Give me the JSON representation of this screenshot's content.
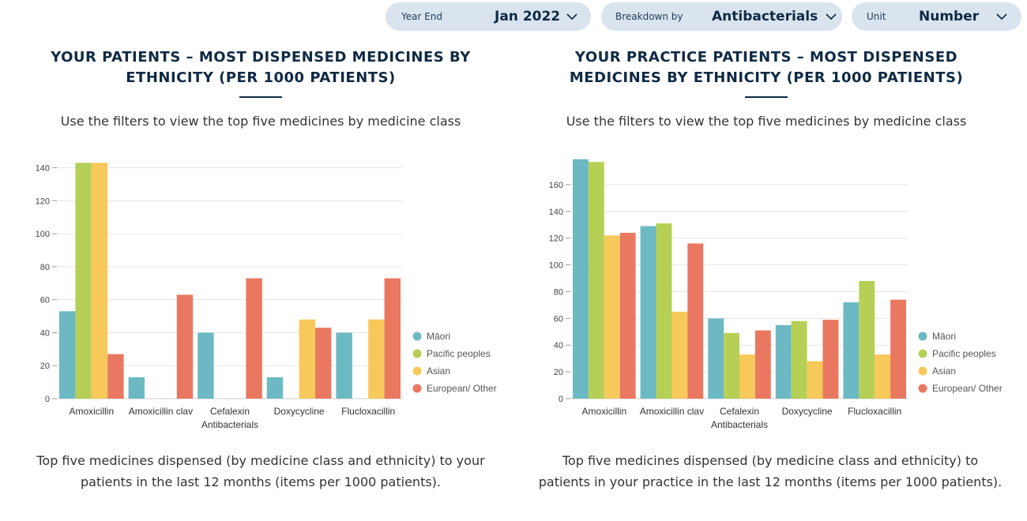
{
  "filters": [
    {
      "label": "Year End",
      "value": "Jan 2022"
    },
    {
      "label": "Breakdown by",
      "value": "Antibacterials"
    },
    {
      "label": "Unit",
      "value": "Number"
    }
  ],
  "colors": {
    "Māori": "#6cb9c4",
    "Pacific peoples": "#b5d055",
    "Asian": "#f7c95a",
    "European/ Other": "#ea7860"
  },
  "panels": [
    {
      "title": "YOUR PATIENTS – MOST DISPENSED MEDICINES BY ETHNICITY (PER 1000 PATIENTS)",
      "subtitle": "Use the filters to view the top five medicines by medicine class",
      "caption": "Top five medicines dispensed (by medicine class and ethnicity) to your patients in the last 12 months (items per 1000 patients)."
    },
    {
      "title": "YOUR PRACTICE PATIENTS – MOST DISPENSED MEDICINES BY ETHNICITY (PER 1000 PATIENTS)",
      "subtitle": "Use the filters to view the top five medicines by medicine class",
      "caption": "Top five medicines dispensed (by medicine class and ethnicity) to patients in your practice in the last 12 months (items per 1000 patients)."
    }
  ],
  "chart_data": [
    {
      "type": "bar",
      "xlabel": "Antibacterials",
      "ylabel": "",
      "categories": [
        "Amoxicillin",
        "Amoxicillin clav",
        "Cefalexin",
        "Doxycycline",
        "Flucloxacillin"
      ],
      "series": [
        {
          "name": "Māori",
          "values": [
            53,
            13,
            40,
            13,
            40
          ]
        },
        {
          "name": "Pacific peoples",
          "values": [
            143,
            0,
            0,
            0,
            0
          ]
        },
        {
          "name": "Asian",
          "values": [
            143,
            0,
            0,
            48,
            48
          ]
        },
        {
          "name": "European/ Other",
          "values": [
            27,
            63,
            73,
            43,
            73
          ]
        }
      ],
      "ylim": [
        0,
        146
      ],
      "yticks": [
        0,
        20,
        40,
        60,
        80,
        100,
        120,
        140
      ],
      "legend": "right",
      "grid": true
    },
    {
      "type": "bar",
      "xlabel": "Antibacterials",
      "ylabel": "",
      "categories": [
        "Amoxicillin",
        "Amoxicillin clav",
        "Cefalexin",
        "Doxycycline",
        "Flucloxacillin"
      ],
      "series": [
        {
          "name": "Māori",
          "values": [
            179,
            129,
            60,
            55,
            72
          ]
        },
        {
          "name": "Pacific peoples",
          "values": [
            177,
            131,
            49,
            58,
            88
          ]
        },
        {
          "name": "Asian",
          "values": [
            122,
            65,
            33,
            28,
            33
          ]
        },
        {
          "name": "European/ Other",
          "values": [
            124,
            116,
            51,
            59,
            74
          ]
        }
      ],
      "ylim": [
        0,
        180
      ],
      "yticks": [
        0,
        20,
        40,
        60,
        80,
        100,
        120,
        140,
        160
      ],
      "legend": "right",
      "grid": true
    }
  ]
}
